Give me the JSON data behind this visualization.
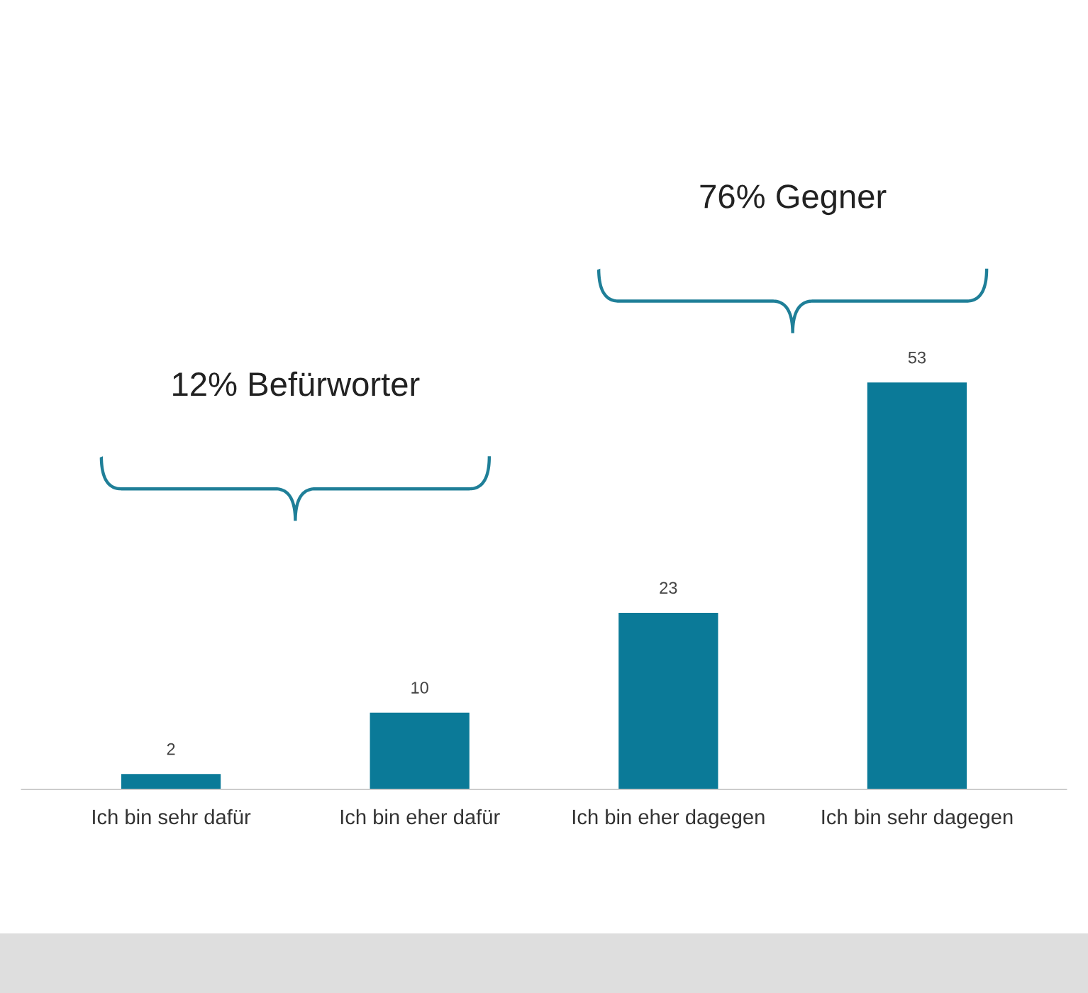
{
  "chart_data": {
    "type": "bar",
    "categories": [
      "Ich bin sehr dafür",
      "Ich bin eher dafür",
      "Ich bin eher dagegen",
      "Ich bin sehr dagegen"
    ],
    "values": [
      2,
      10,
      23,
      53
    ],
    "color": "#0b7a98",
    "data_labels": true,
    "grid": false,
    "legend": false,
    "annotations": [
      "12% Befürworter",
      "76% Gegner"
    ]
  }
}
